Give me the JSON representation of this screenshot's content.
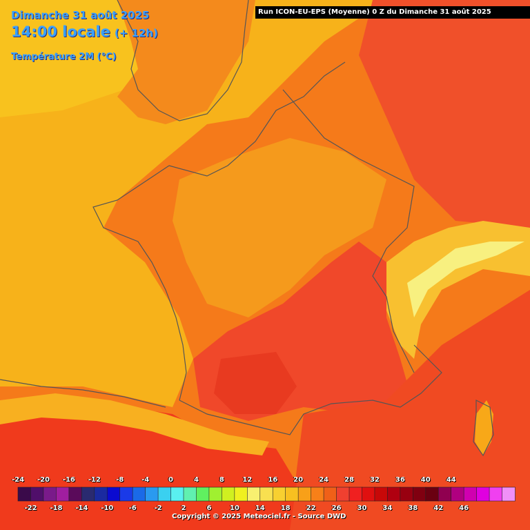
{
  "header": {
    "date": "Dimanche 31 août 2025",
    "time": "14:00 locale",
    "lead": "(+ 12h)",
    "parameter": "Température 2M (°C)"
  },
  "run_info": "Run ICON-EU-EPS (Moyenne) 0 Z du Dimanche 31 août 2025",
  "copyright": "Copyright © 2025 Meteociel.fr - Source DWD",
  "legend": {
    "labels_top": [
      "-24",
      "-20",
      "-16",
      "-12",
      "-8",
      "-4",
      "0",
      "4",
      "8",
      "12",
      "16",
      "20",
      "24",
      "28",
      "32",
      "36",
      "40",
      "44"
    ],
    "labels_bottom": [
      "-22",
      "-18",
      "-14",
      "-10",
      "-6",
      "-2",
      "2",
      "6",
      "10",
      "14",
      "18",
      "22",
      "26",
      "30",
      "34",
      "38",
      "42",
      "46"
    ],
    "colors": [
      "#3a0a4a",
      "#500f6a",
      "#7a1a8a",
      "#a01ea0",
      "#5a0a5a",
      "#2a2a70",
      "#1a2aa0",
      "#0a0ad0",
      "#1a3ae8",
      "#1a6ae8",
      "#2a9af0",
      "#3ad0f0",
      "#5af0f0",
      "#60f0b0",
      "#60f060",
      "#a0f030",
      "#d0f020",
      "#f0f020",
      "#f8f070",
      "#f8e050",
      "#f8d030",
      "#f8c020",
      "#f8a018",
      "#f88018",
      "#f06018",
      "#f04030",
      "#f02020",
      "#e01010",
      "#c80808",
      "#b00010",
      "#980010",
      "#800010",
      "#6a0010",
      "#900050",
      "#b00080",
      "#d000b0",
      "#e000e0",
      "#f040f0",
      "#f090f8"
    ]
  },
  "map_layers": {
    "sea_temp_color": "#f5b01a",
    "land_temp_color": "#f5891c",
    "hot_zone_color": "#f0502a",
    "alps_color": "#f8e070",
    "border_color": "#555555"
  }
}
